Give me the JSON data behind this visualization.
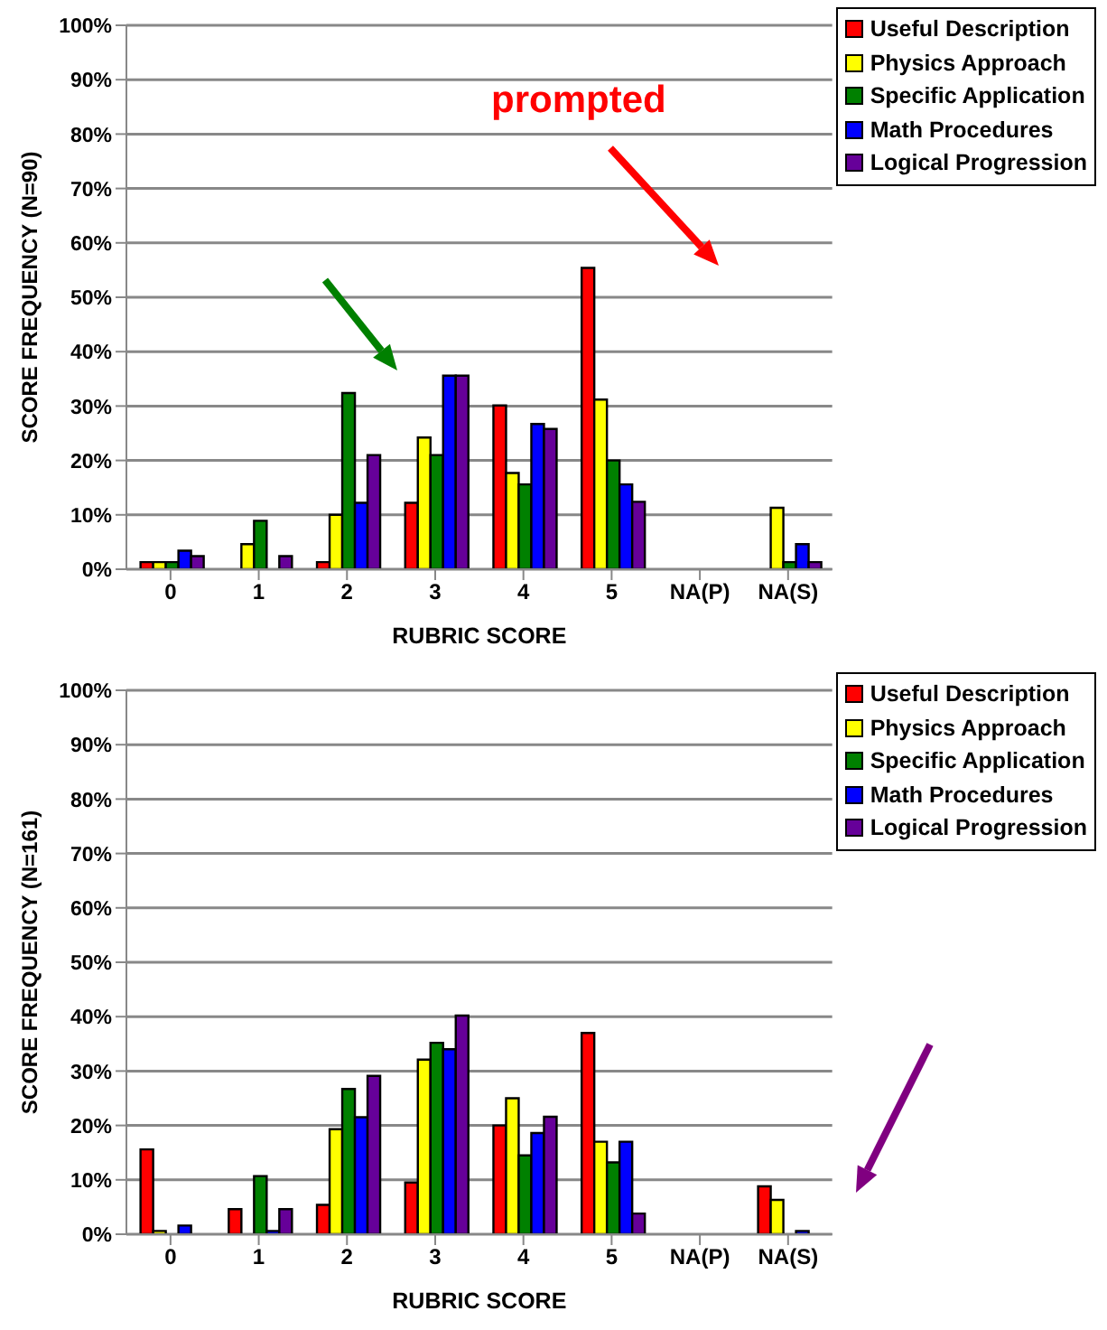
{
  "chart_data": [
    {
      "type": "bar",
      "xlabel": "RUBRIC SCORE",
      "ylabel": "SCORE FREQUENCY (N=90)",
      "categories": [
        "0",
        "1",
        "2",
        "3",
        "4",
        "5",
        "NA(P)",
        "NA(S)"
      ],
      "series": [
        {
          "name": "Useful Description",
          "color": "#ff0000",
          "values": [
            1.3,
            0,
            1.3,
            12.2,
            30.1,
            55.4,
            0,
            0
          ]
        },
        {
          "name": "Physics Approach",
          "color": "#ffff00",
          "values": [
            1.3,
            4.6,
            10,
            24.2,
            17.7,
            31.2,
            0,
            11.3
          ]
        },
        {
          "name": "Specific Application",
          "color": "#008000",
          "values": [
            1.3,
            8.9,
            32.4,
            21,
            15.6,
            20,
            0,
            1.3
          ]
        },
        {
          "name": "Math Procedures",
          "color": "#0000ff",
          "values": [
            3.4,
            0,
            12.2,
            35.6,
            26.7,
            15.6,
            0,
            4.6
          ]
        },
        {
          "name": "Logical Progression",
          "color": "#660099",
          "values": [
            2.4,
            2.4,
            21,
            35.6,
            25.8,
            12.4,
            0,
            1.3
          ]
        }
      ],
      "ylim": [
        0,
        100
      ],
      "yticks": [
        {
          "value": 0,
          "label": "0%"
        },
        {
          "value": 10,
          "label": "10%"
        },
        {
          "value": 20,
          "label": "20%"
        },
        {
          "value": 30,
          "label": "30%"
        },
        {
          "value": 40,
          "label": "40%"
        },
        {
          "value": 50,
          "label": "50%"
        },
        {
          "value": 60,
          "label": "60%"
        },
        {
          "value": 70,
          "label": "70%"
        },
        {
          "value": 80,
          "label": "80%"
        },
        {
          "value": 90,
          "label": "90%"
        },
        {
          "value": 100,
          "label": "100%"
        }
      ],
      "grid": "y",
      "legend": "top right",
      "annotations": [
        "prompted"
      ]
    },
    {
      "type": "bar",
      "xlabel": "RUBRIC SCORE",
      "ylabel": "SCORE FREQUENCY (N=161)",
      "categories": [
        "0",
        "1",
        "2",
        "3",
        "4",
        "5",
        "NA(P)",
        "NA(S)"
      ],
      "series": [
        {
          "name": "Useful Description",
          "color": "#ff0000",
          "values": [
            15.6,
            4.6,
            5.4,
            9.5,
            20,
            37,
            0,
            8.8
          ]
        },
        {
          "name": "Physics Approach",
          "color": "#ffff00",
          "values": [
            0.6,
            0,
            19.3,
            32.1,
            25,
            17,
            0,
            6.3
          ]
        },
        {
          "name": "Specific Application",
          "color": "#008000",
          "values": [
            0,
            10.7,
            26.7,
            35.2,
            14.5,
            13.2,
            0,
            0
          ]
        },
        {
          "name": "Math Procedures",
          "color": "#0000ff",
          "values": [
            1.6,
            0.6,
            21.5,
            34,
            18.6,
            17,
            0,
            0.6
          ]
        },
        {
          "name": "Logical Progression",
          "color": "#660099",
          "values": [
            0,
            4.6,
            29.1,
            40.2,
            21.6,
            3.8,
            0,
            0
          ]
        }
      ],
      "ylim": [
        0,
        100
      ],
      "yticks": [
        {
          "value": 0,
          "label": "0%"
        },
        {
          "value": 10,
          "label": "10%"
        },
        {
          "value": 20,
          "label": "20%"
        },
        {
          "value": 30,
          "label": "30%"
        },
        {
          "value": 40,
          "label": "40%"
        },
        {
          "value": 50,
          "label": "50%"
        },
        {
          "value": 60,
          "label": "60%"
        },
        {
          "value": 70,
          "label": "70%"
        },
        {
          "value": 80,
          "label": "80%"
        },
        {
          "value": 90,
          "label": "90%"
        },
        {
          "value": 100,
          "label": "100%"
        }
      ],
      "grid": "y",
      "legend": "top right"
    }
  ]
}
